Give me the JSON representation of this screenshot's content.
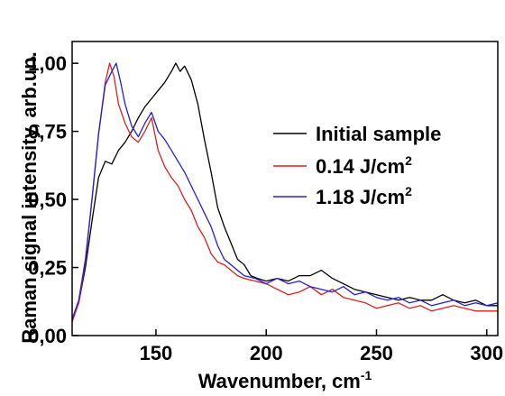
{
  "chart_data": {
    "type": "line",
    "xlabel": "Wavenumber, cm",
    "xlabel_sup": "-1",
    "ylabel": "Raman signal intensity, arb.un.",
    "xlim": [
      112,
      305
    ],
    "ylim": [
      0,
      1.08
    ],
    "x_ticks": [
      150,
      200,
      250,
      300
    ],
    "x_tick_labels": [
      "150",
      "200",
      "250",
      "300"
    ],
    "y_ticks": [
      0,
      0.25,
      0.5,
      0.75,
      1.0
    ],
    "y_tick_labels": [
      "0,00",
      "0,25",
      "0,50",
      "0,75",
      "1,00"
    ],
    "grid": false,
    "legend_position": "center-right",
    "series": [
      {
        "name": "Initial sample",
        "legend_main": "Initial sample",
        "legend_sup": "",
        "color": "#000000",
        "x": [
          112,
          115,
          118,
          121,
          124,
          127,
          130,
          133,
          136,
          139,
          142,
          145,
          148,
          151,
          154,
          157,
          159,
          161,
          163,
          166,
          169,
          172,
          175,
          178,
          181,
          184,
          187,
          190,
          193,
          196,
          200,
          205,
          210,
          215,
          220,
          225,
          230,
          235,
          240,
          245,
          250,
          255,
          260,
          265,
          270,
          275,
          280,
          285,
          290,
          295,
          300,
          305
        ],
        "y": [
          0.06,
          0.12,
          0.25,
          0.42,
          0.58,
          0.64,
          0.63,
          0.68,
          0.71,
          0.75,
          0.8,
          0.84,
          0.87,
          0.9,
          0.93,
          0.97,
          1.0,
          0.97,
          0.99,
          0.94,
          0.85,
          0.72,
          0.6,
          0.47,
          0.4,
          0.34,
          0.28,
          0.26,
          0.22,
          0.21,
          0.2,
          0.21,
          0.2,
          0.22,
          0.22,
          0.24,
          0.21,
          0.19,
          0.17,
          0.16,
          0.15,
          0.14,
          0.13,
          0.14,
          0.13,
          0.13,
          0.15,
          0.13,
          0.12,
          0.13,
          0.11,
          0.11
        ]
      },
      {
        "name": "0.14 J/cm2",
        "legend_main": "0.14 J/cm",
        "legend_sup": "2",
        "color": "#dd1e1e",
        "x": [
          112,
          115,
          118,
          121,
          124,
          127,
          129,
          131,
          133,
          136,
          139,
          142,
          145,
          148,
          151,
          154,
          157,
          160,
          163,
          166,
          169,
          172,
          175,
          178,
          181,
          184,
          187,
          190,
          195,
          200,
          205,
          210,
          215,
          220,
          225,
          230,
          235,
          240,
          245,
          250,
          255,
          260,
          265,
          270,
          275,
          280,
          285,
          290,
          295,
          300,
          305
        ],
        "y": [
          0.05,
          0.12,
          0.27,
          0.5,
          0.74,
          0.93,
          1.0,
          0.95,
          0.85,
          0.78,
          0.73,
          0.71,
          0.75,
          0.8,
          0.68,
          0.62,
          0.58,
          0.55,
          0.5,
          0.46,
          0.4,
          0.36,
          0.3,
          0.27,
          0.26,
          0.24,
          0.22,
          0.21,
          0.2,
          0.19,
          0.17,
          0.15,
          0.16,
          0.18,
          0.15,
          0.17,
          0.14,
          0.13,
          0.12,
          0.1,
          0.11,
          0.12,
          0.1,
          0.11,
          0.09,
          0.1,
          0.11,
          0.1,
          0.09,
          0.09,
          0.09
        ]
      },
      {
        "name": "1.18 J/cm2",
        "legend_main": "1.18 J/cm",
        "legend_sup": "2",
        "color": "#2020dd",
        "x": [
          112,
          115,
          118,
          121,
          124,
          127,
          130,
          132,
          134,
          136,
          139,
          142,
          145,
          148,
          151,
          154,
          157,
          160,
          163,
          166,
          169,
          172,
          175,
          178,
          181,
          184,
          187,
          190,
          195,
          200,
          205,
          210,
          215,
          220,
          225,
          230,
          235,
          240,
          245,
          250,
          255,
          260,
          265,
          270,
          275,
          280,
          285,
          290,
          295,
          300,
          305
        ],
        "y": [
          0.06,
          0.13,
          0.28,
          0.5,
          0.74,
          0.92,
          0.97,
          1.0,
          0.93,
          0.85,
          0.77,
          0.73,
          0.78,
          0.82,
          0.75,
          0.72,
          0.68,
          0.64,
          0.6,
          0.55,
          0.5,
          0.45,
          0.4,
          0.33,
          0.28,
          0.26,
          0.24,
          0.22,
          0.21,
          0.19,
          0.21,
          0.19,
          0.2,
          0.18,
          0.17,
          0.16,
          0.18,
          0.15,
          0.16,
          0.14,
          0.13,
          0.14,
          0.12,
          0.13,
          0.11,
          0.12,
          0.13,
          0.11,
          0.12,
          0.11,
          0.12
        ]
      }
    ]
  }
}
